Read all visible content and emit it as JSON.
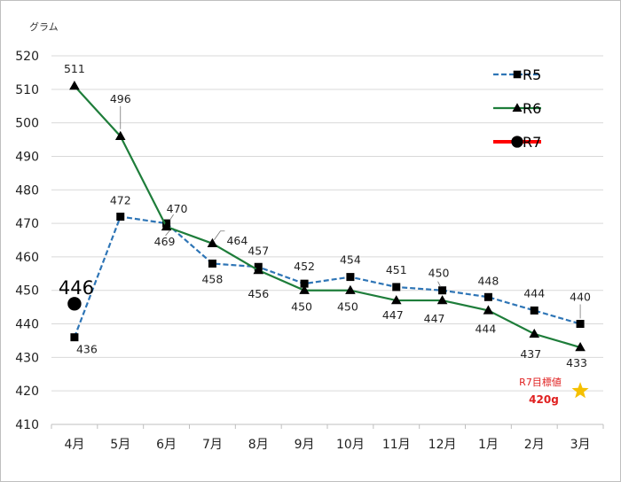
{
  "chart_data": {
    "type": "line",
    "unit_label": "グラム",
    "categories": [
      "4月",
      "5月",
      "6月",
      "7月",
      "8月",
      "9月",
      "10月",
      "11月",
      "12月",
      "1月",
      "2月",
      "3月"
    ],
    "ylim": [
      410,
      520
    ],
    "ytick_step": 10,
    "grid": true,
    "legend_position": "top-right",
    "series": [
      {
        "name": "R5",
        "values": [
          436,
          472,
          470,
          458,
          457,
          452,
          454,
          451,
          450,
          448,
          444,
          440
        ],
        "color": "#2e75b6",
        "dash": "dashed",
        "marker": "square"
      },
      {
        "name": "R6",
        "values": [
          511,
          496,
          469,
          464,
          456,
          450,
          450,
          447,
          447,
          444,
          437,
          433
        ],
        "color": "#1e7d3a",
        "dash": "solid",
        "marker": "triangle"
      },
      {
        "name": "R7",
        "values": [
          446,
          null,
          null,
          null,
          null,
          null,
          null,
          null,
          null,
          null,
          null,
          null
        ],
        "color": "#ff0000",
        "dash": "solid",
        "marker": "circle"
      }
    ],
    "annotations": {
      "target_label": "R7目標値",
      "target_value": "420g",
      "target_y": 420,
      "target_category": "3月",
      "target_color": "#f5c000"
    }
  }
}
